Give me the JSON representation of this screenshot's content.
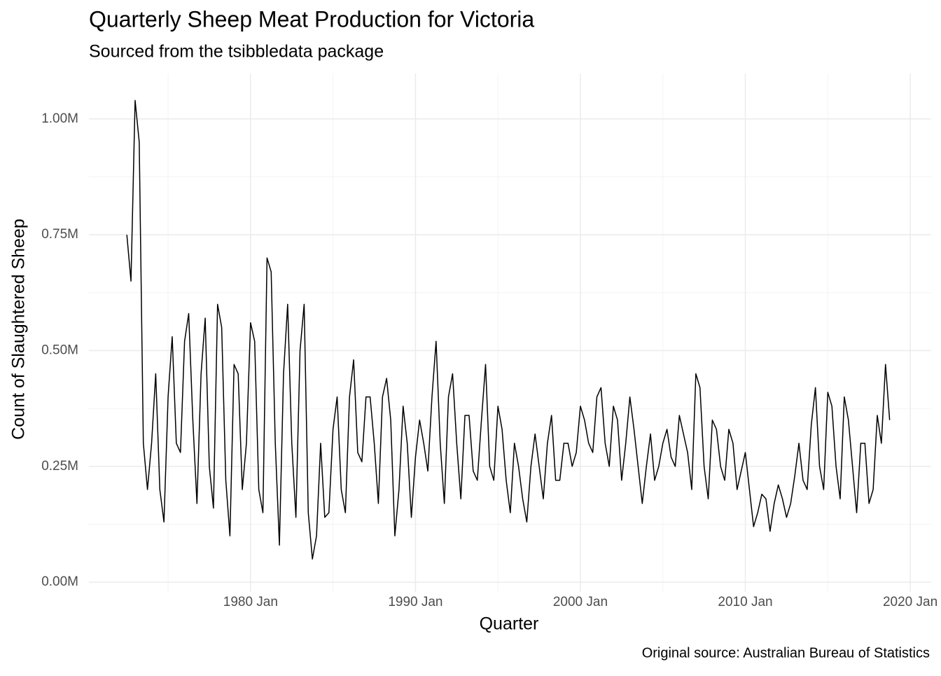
{
  "chart_data": {
    "type": "line",
    "title": "Quarterly Sheep Meat Production for Victoria",
    "subtitle": "Sourced from the tsibbledata package",
    "x_label": "Quarter",
    "y_label": "Count of Slaughtered Sheep",
    "caption": "Original source: Australian Bureau of Statistics",
    "x": [
      "1972 Jul",
      "1972 Oct",
      "1973 Jan",
      "1973 Apr",
      "1973 Jul",
      "1973 Oct",
      "1974 Jan",
      "1974 Apr",
      "1974 Jul",
      "1974 Oct",
      "1975 Jan",
      "1975 Apr",
      "1975 Jul",
      "1975 Oct",
      "1976 Jan",
      "1976 Apr",
      "1976 Jul",
      "1976 Oct",
      "1977 Jan",
      "1977 Apr",
      "1977 Jul",
      "1977 Oct",
      "1978 Jan",
      "1978 Apr",
      "1978 Jul",
      "1978 Oct",
      "1979 Jan",
      "1979 Apr",
      "1979 Jul",
      "1979 Oct",
      "1980 Jan",
      "1980 Apr",
      "1980 Jul",
      "1980 Oct",
      "1981 Jan",
      "1981 Apr",
      "1981 Jul",
      "1981 Oct",
      "1982 Jan",
      "1982 Apr",
      "1982 Jul",
      "1982 Oct",
      "1983 Jan",
      "1983 Apr",
      "1983 Jul",
      "1983 Oct",
      "1984 Jan",
      "1984 Apr",
      "1984 Jul",
      "1984 Oct",
      "1985 Jan",
      "1985 Apr",
      "1985 Jul",
      "1985 Oct",
      "1986 Jan",
      "1986 Apr",
      "1986 Jul",
      "1986 Oct",
      "1987 Jan",
      "1987 Apr",
      "1987 Jul",
      "1987 Oct",
      "1988 Jan",
      "1988 Apr",
      "1988 Jul",
      "1988 Oct",
      "1989 Jan",
      "1989 Apr",
      "1989 Jul",
      "1989 Oct",
      "1990 Jan",
      "1990 Apr",
      "1990 Jul",
      "1990 Oct",
      "1991 Jan",
      "1991 Apr",
      "1991 Jul",
      "1991 Oct",
      "1992 Jan",
      "1992 Apr",
      "1992 Jul",
      "1992 Oct",
      "1993 Jan",
      "1993 Apr",
      "1993 Jul",
      "1993 Oct",
      "1994 Jan",
      "1994 Apr",
      "1994 Jul",
      "1994 Oct",
      "1995 Jan",
      "1995 Apr",
      "1995 Jul",
      "1995 Oct",
      "1996 Jan",
      "1996 Apr",
      "1996 Jul",
      "1996 Oct",
      "1997 Jan",
      "1997 Apr",
      "1997 Jul",
      "1997 Oct",
      "1998 Jan",
      "1998 Apr",
      "1998 Jul",
      "1998 Oct",
      "1999 Jan",
      "1999 Apr",
      "1999 Jul",
      "1999 Oct",
      "2000 Jan",
      "2000 Apr",
      "2000 Jul",
      "2000 Oct",
      "2001 Jan",
      "2001 Apr",
      "2001 Jul",
      "2001 Oct",
      "2002 Jan",
      "2002 Apr",
      "2002 Jul",
      "2002 Oct",
      "2003 Jan",
      "2003 Apr",
      "2003 Jul",
      "2003 Oct",
      "2004 Jan",
      "2004 Apr",
      "2004 Jul",
      "2004 Oct",
      "2005 Jan",
      "2005 Apr",
      "2005 Jul",
      "2005 Oct",
      "2006 Jan",
      "2006 Apr",
      "2006 Jul",
      "2006 Oct",
      "2007 Jan",
      "2007 Apr",
      "2007 Jul",
      "2007 Oct",
      "2008 Jan",
      "2008 Apr",
      "2008 Jul",
      "2008 Oct",
      "2009 Jan",
      "2009 Apr",
      "2009 Jul",
      "2009 Oct",
      "2010 Jan",
      "2010 Apr",
      "2010 Jul",
      "2010 Oct",
      "2011 Jan",
      "2011 Apr",
      "2011 Jul",
      "2011 Oct",
      "2012 Jan",
      "2012 Apr",
      "2012 Jul",
      "2012 Oct",
      "2013 Jan",
      "2013 Apr",
      "2013 Jul",
      "2013 Oct",
      "2014 Jan",
      "2014 Apr",
      "2014 Jul",
      "2014 Oct",
      "2015 Jan",
      "2015 Apr",
      "2015 Jul",
      "2015 Oct",
      "2016 Jan",
      "2016 Apr",
      "2016 Jul",
      "2016 Oct",
      "2017 Jan",
      "2017 Apr",
      "2017 Jul",
      "2017 Oct",
      "2018 Jan",
      "2018 Apr",
      "2018 Jul",
      "2018 Oct"
    ],
    "series": [
      {
        "name": "Count",
        "color": "#000000",
        "values": [
          750000,
          650000,
          1040000,
          950000,
          300000,
          200000,
          300000,
          450000,
          200000,
          130000,
          400000,
          530000,
          300000,
          280000,
          520000,
          580000,
          350000,
          170000,
          450000,
          570000,
          250000,
          160000,
          600000,
          550000,
          220000,
          100000,
          470000,
          450000,
          200000,
          300000,
          560000,
          520000,
          200000,
          150000,
          700000,
          670000,
          300000,
          80000,
          450000,
          600000,
          300000,
          140000,
          500000,
          600000,
          150000,
          50000,
          100000,
          300000,
          140000,
          150000,
          330000,
          400000,
          200000,
          150000,
          400000,
          480000,
          280000,
          260000,
          400000,
          400000,
          300000,
          170000,
          400000,
          440000,
          350000,
          100000,
          200000,
          380000,
          300000,
          140000,
          270000,
          350000,
          300000,
          240000,
          400000,
          520000,
          300000,
          170000,
          400000,
          450000,
          300000,
          180000,
          360000,
          360000,
          240000,
          220000,
          350000,
          470000,
          250000,
          220000,
          380000,
          330000,
          220000,
          150000,
          300000,
          250000,
          180000,
          130000,
          250000,
          320000,
          250000,
          180000,
          300000,
          360000,
          220000,
          220000,
          300000,
          300000,
          250000,
          280000,
          380000,
          350000,
          300000,
          280000,
          400000,
          420000,
          300000,
          250000,
          380000,
          350000,
          220000,
          300000,
          400000,
          330000,
          250000,
          170000,
          250000,
          320000,
          220000,
          250000,
          300000,
          330000,
          270000,
          250000,
          360000,
          320000,
          280000,
          200000,
          450000,
          420000,
          250000,
          180000,
          350000,
          330000,
          250000,
          220000,
          330000,
          300000,
          200000,
          240000,
          280000,
          200000,
          120000,
          150000,
          190000,
          180000,
          110000,
          170000,
          210000,
          180000,
          140000,
          170000,
          230000,
          300000,
          220000,
          200000,
          340000,
          420000,
          250000,
          200000,
          410000,
          380000,
          250000,
          180000,
          400000,
          350000,
          250000,
          150000,
          300000,
          300000,
          170000,
          200000,
          360000,
          300000,
          470000,
          350000
        ]
      }
    ],
    "xlim": [
      1970.2,
      2021.27
    ],
    "ylim": [
      -21000,
      1098000
    ],
    "xticks": [
      {
        "value": 1980,
        "label": "1980 Jan"
      },
      {
        "value": 1990,
        "label": "1990 Jan"
      },
      {
        "value": 2000,
        "label": "2000 Jan"
      },
      {
        "value": 2010,
        "label": "2010 Jan"
      },
      {
        "value": 2020,
        "label": "2020 Jan"
      }
    ],
    "yticks": [
      {
        "value": 0,
        "label": "0.00M"
      },
      {
        "value": 250000,
        "label": "0.25M"
      },
      {
        "value": 500000,
        "label": "0.50M"
      },
      {
        "value": 750000,
        "label": "0.75M"
      },
      {
        "value": 1000000,
        "label": "1.00M"
      }
    ],
    "xminor": [
      1975,
      1985,
      1995,
      2005,
      2015
    ],
    "yminor": [
      125000,
      375000,
      625000,
      875000
    ],
    "grid": true
  }
}
